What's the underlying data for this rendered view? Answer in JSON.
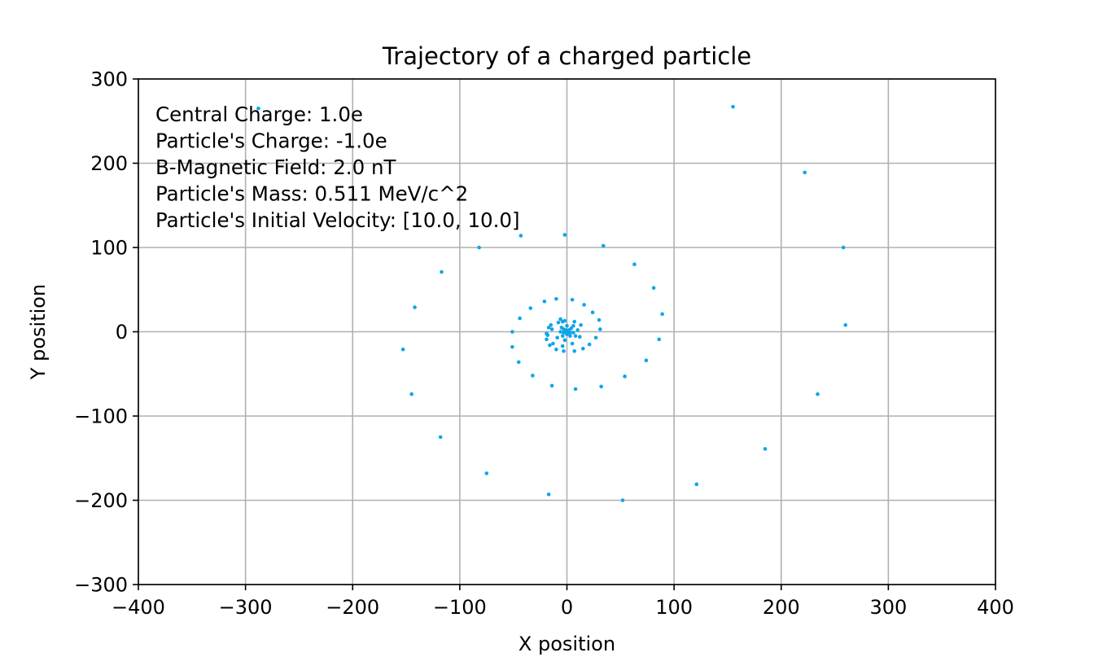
{
  "chart_data": {
    "type": "scatter",
    "title": "Trajectory of a charged particle",
    "xlabel": "X position",
    "ylabel": "Y position",
    "xlim": [
      -400,
      400
    ],
    "ylim": [
      -300,
      300
    ],
    "xticks": [
      -400,
      -300,
      -200,
      -100,
      0,
      100,
      200,
      300,
      400
    ],
    "yticks": [
      -300,
      -200,
      -100,
      0,
      100,
      200,
      300
    ],
    "xtick_labels": [
      "−400",
      "−300",
      "−200",
      "−100",
      "0",
      "100",
      "200",
      "300",
      "400"
    ],
    "ytick_labels": [
      "−300",
      "−200",
      "−100",
      "0",
      "100",
      "200",
      "300"
    ],
    "grid": true,
    "marker_color": "#0ea5e9",
    "annotation": [
      "Central Charge: 1.0e",
      "Particle's Charge: -1.0e",
      "B-Magnetic Field: 2.0 nT",
      "Particle's Mass: 0.511 MeV/c^2",
      "Particle's Initial Velocity: [10.0, 10.0]"
    ],
    "points": [
      [
        0,
        0
      ],
      [
        1,
        1
      ],
      [
        2,
        0
      ],
      [
        1,
        -1
      ],
      [
        -1,
        -1
      ],
      [
        -2,
        0
      ],
      [
        -1,
        2
      ],
      [
        2,
        2
      ],
      [
        3,
        -1
      ],
      [
        0,
        -3
      ],
      [
        -3,
        -1
      ],
      [
        -3,
        3
      ],
      [
        4,
        4
      ],
      [
        6,
        -1
      ],
      [
        3,
        -5
      ],
      [
        -4,
        -5
      ],
      [
        -6,
        0
      ],
      [
        -5,
        5
      ],
      [
        0,
        7
      ],
      [
        6,
        7
      ],
      [
        10,
        2
      ],
      [
        8,
        -5
      ],
      [
        -2,
        -10
      ],
      [
        -9,
        -7
      ],
      [
        -14,
        3
      ],
      [
        -8,
        11
      ],
      [
        -2,
        13
      ],
      [
        7,
        12
      ],
      [
        13,
        8
      ],
      [
        12,
        -6
      ],
      [
        5,
        -14
      ],
      [
        -4,
        -17
      ],
      [
        -13,
        -14
      ],
      [
        -18,
        -4
      ],
      [
        -15,
        8
      ],
      [
        -4,
        12
      ],
      [
        -17,
        5
      ],
      [
        -6,
        15
      ],
      [
        -10,
        39
      ],
      [
        5,
        38
      ],
      [
        16,
        32
      ],
      [
        24,
        23
      ],
      [
        30,
        14
      ],
      [
        31,
        3
      ],
      [
        27,
        -7
      ],
      [
        21,
        -15
      ],
      [
        15,
        -20
      ],
      [
        7,
        -23
      ],
      [
        -3,
        -23
      ],
      [
        -10,
        -21
      ],
      [
        -16,
        -16
      ],
      [
        -19,
        -9
      ],
      [
        -19,
        -2
      ],
      [
        -21,
        36
      ],
      [
        -34,
        28
      ],
      [
        -44,
        16
      ],
      [
        -51,
        0
      ],
      [
        -51,
        -18
      ],
      [
        -45,
        -36
      ],
      [
        -32,
        -52
      ],
      [
        -14,
        -64
      ],
      [
        8,
        -68
      ],
      [
        32,
        -65
      ],
      [
        54,
        -53
      ],
      [
        74,
        -34
      ],
      [
        86,
        -9
      ],
      [
        89,
        21
      ],
      [
        81,
        52
      ],
      [
        63,
        80
      ],
      [
        34,
        102
      ],
      [
        -2,
        115
      ],
      [
        -43,
        114
      ],
      [
        -82,
        100
      ],
      [
        -117,
        71
      ],
      [
        -142,
        29
      ],
      [
        -153,
        -21
      ],
      [
        -145,
        -74
      ],
      [
        -118,
        -125
      ],
      [
        -75,
        -168
      ],
      [
        -17,
        -193
      ],
      [
        52,
        -200
      ],
      [
        121,
        -181
      ],
      [
        185,
        -139
      ],
      [
        234,
        -74
      ],
      [
        260,
        8
      ],
      [
        258,
        100
      ],
      [
        222,
        189
      ],
      [
        155,
        267
      ],
      [
        -288,
        265
      ]
    ]
  }
}
